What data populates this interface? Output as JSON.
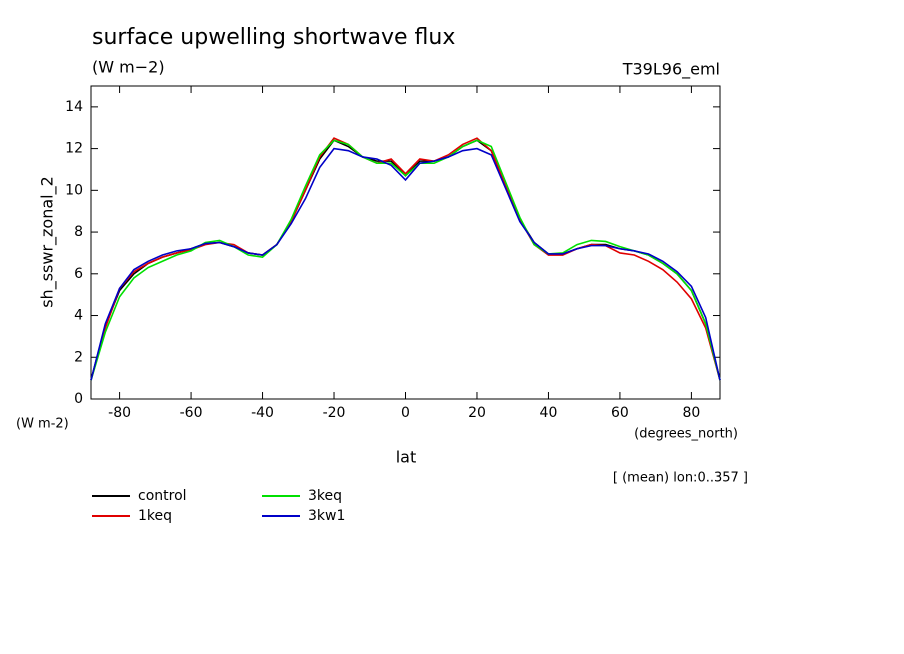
{
  "chart_data": {
    "type": "line",
    "title": "surface upwelling shortwave flux",
    "subtitle": "(W m−2)",
    "run_label": "T39L96_eml",
    "y_label": "sh_sswr_zonal_2",
    "y_units": "(W m-2)",
    "x_units": "(degrees_north)",
    "x_label": "lat",
    "note": "[ (mean) lon:0..357 ]",
    "x": [
      -88,
      -84,
      -80,
      -76,
      -72,
      -68,
      -64,
      -60,
      -56,
      -52,
      -48,
      -44,
      -40,
      -36,
      -32,
      -28,
      -24,
      -20,
      -16,
      -12,
      -8,
      -4,
      0,
      4,
      8,
      12,
      16,
      20,
      24,
      28,
      32,
      36,
      40,
      44,
      48,
      52,
      56,
      60,
      64,
      68,
      72,
      76,
      80,
      84,
      88
    ],
    "series": [
      {
        "name": "control",
        "color": "#000000",
        "values": [
          0.9,
          3.5,
          5.2,
          6.0,
          6.5,
          6.8,
          7.0,
          7.2,
          7.45,
          7.5,
          7.3,
          7.0,
          6.9,
          7.4,
          8.5,
          10.0,
          11.5,
          12.4,
          12.1,
          11.6,
          11.4,
          11.4,
          10.7,
          11.4,
          11.4,
          11.6,
          12.1,
          12.4,
          11.9,
          10.2,
          8.6,
          7.5,
          6.95,
          6.95,
          7.2,
          7.4,
          7.4,
          7.2,
          7.1,
          6.9,
          6.5,
          6.0,
          5.2,
          3.6,
          0.9
        ]
      },
      {
        "name": "1keq",
        "color": "#e00000",
        "values": [
          0.9,
          3.4,
          5.3,
          6.1,
          6.5,
          6.8,
          7.0,
          7.15,
          7.4,
          7.5,
          7.4,
          7.0,
          6.9,
          7.4,
          8.5,
          10.0,
          11.6,
          12.5,
          12.2,
          11.6,
          11.3,
          11.5,
          10.8,
          11.5,
          11.4,
          11.7,
          12.2,
          12.5,
          11.9,
          10.2,
          8.6,
          7.4,
          6.9,
          6.9,
          7.2,
          7.4,
          7.35,
          7.0,
          6.9,
          6.6,
          6.2,
          5.6,
          4.8,
          3.4,
          0.9
        ]
      },
      {
        "name": "3keq",
        "color": "#00e000",
        "values": [
          0.9,
          3.2,
          4.9,
          5.8,
          6.3,
          6.6,
          6.9,
          7.1,
          7.5,
          7.6,
          7.3,
          6.9,
          6.8,
          7.4,
          8.6,
          10.2,
          11.7,
          12.4,
          12.2,
          11.6,
          11.3,
          11.3,
          10.7,
          11.3,
          11.3,
          11.6,
          12.1,
          12.4,
          12.1,
          10.4,
          8.7,
          7.4,
          6.95,
          7.0,
          7.4,
          7.6,
          7.55,
          7.3,
          7.1,
          6.9,
          6.5,
          6.0,
          5.2,
          3.6,
          0.9
        ]
      },
      {
        "name": "3kw1",
        "color": "#0000c8",
        "values": [
          0.9,
          3.6,
          5.3,
          6.2,
          6.6,
          6.9,
          7.1,
          7.2,
          7.45,
          7.5,
          7.3,
          7.0,
          6.9,
          7.4,
          8.4,
          9.6,
          11.1,
          12.0,
          11.9,
          11.6,
          11.5,
          11.2,
          10.5,
          11.3,
          11.4,
          11.6,
          11.9,
          12.0,
          11.7,
          10.1,
          8.5,
          7.5,
          6.95,
          6.95,
          7.2,
          7.35,
          7.35,
          7.2,
          7.1,
          6.95,
          6.6,
          6.1,
          5.4,
          3.9,
          0.9
        ]
      }
    ],
    "xlim": [
      -88,
      88
    ],
    "xticks": [
      -80,
      -60,
      -40,
      -20,
      0,
      20,
      40,
      60,
      80
    ],
    "ylim": [
      0,
      15
    ],
    "yticks": [
      0,
      2,
      4,
      6,
      8,
      10,
      12,
      14
    ]
  }
}
